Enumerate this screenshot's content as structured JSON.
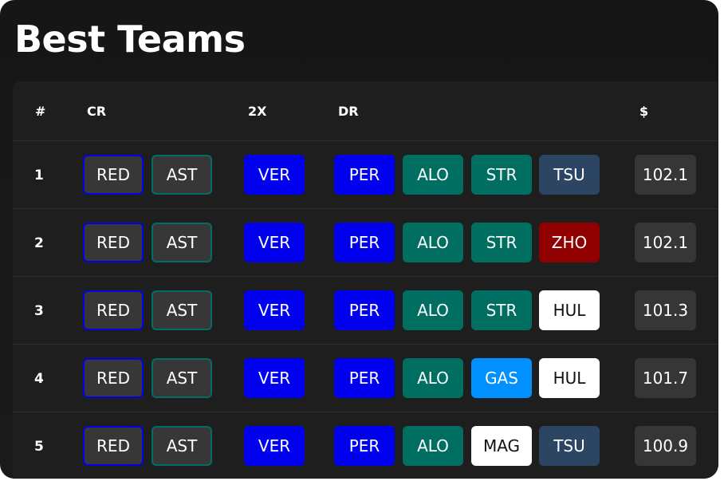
{
  "title": "Best Teams",
  "headers": {
    "num": "#",
    "cr": "CR",
    "x2": "2X",
    "dr": "DR",
    "price": "$"
  },
  "colors": {
    "red_bull": "#0000ee",
    "aston": "#006f62",
    "alpha": "#2b4562",
    "alfa": "#900000",
    "alpine": "#0090ff",
    "haas": "#ffffff",
    "constructor_bg": "#373737"
  },
  "rows": [
    {
      "num": "1",
      "cr": [
        "RED",
        "AST"
      ],
      "x2": "VER",
      "dr": [
        "PER",
        "ALO",
        "STR",
        "TSU"
      ],
      "price": "102.1"
    },
    {
      "num": "2",
      "cr": [
        "RED",
        "AST"
      ],
      "x2": "VER",
      "dr": [
        "PER",
        "ALO",
        "STR",
        "ZHO"
      ],
      "price": "102.1"
    },
    {
      "num": "3",
      "cr": [
        "RED",
        "AST"
      ],
      "x2": "VER",
      "dr": [
        "PER",
        "ALO",
        "STR",
        "HUL"
      ],
      "price": "101.3"
    },
    {
      "num": "4",
      "cr": [
        "RED",
        "AST"
      ],
      "x2": "VER",
      "dr": [
        "PER",
        "ALO",
        "GAS",
        "HUL"
      ],
      "price": "101.7"
    },
    {
      "num": "5",
      "cr": [
        "RED",
        "AST"
      ],
      "x2": "VER",
      "dr": [
        "PER",
        "ALO",
        "MAG",
        "TSU"
      ],
      "price": "100.9"
    }
  ]
}
